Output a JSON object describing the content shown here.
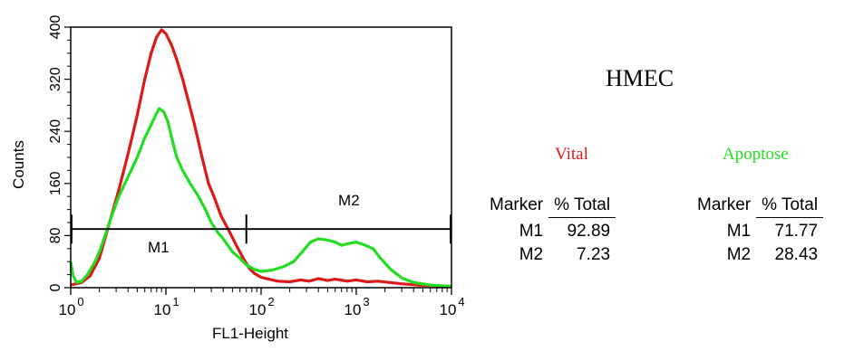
{
  "chart_data": {
    "type": "line",
    "xlabel": "FL1-Height",
    "ylabel": "Counts",
    "xscale": "log",
    "xlim": [
      1,
      10000
    ],
    "ylim": [
      0,
      400
    ],
    "yticks": [
      "0",
      "80",
      "160",
      "240",
      "320",
      "400"
    ],
    "xticks": [
      {
        "base": "10",
        "exp": "0"
      },
      {
        "base": "10",
        "exp": "1"
      },
      {
        "base": "10",
        "exp": "2"
      },
      {
        "base": "10",
        "exp": "3"
      },
      {
        "base": "10",
        "exp": "4"
      }
    ],
    "series": [
      {
        "color": "#dd1a1a",
        "points": [
          [
            1.0,
            4
          ],
          [
            1.3,
            8
          ],
          [
            1.6,
            18
          ],
          [
            2.0,
            45
          ],
          [
            2.5,
            95
          ],
          [
            3.2,
            150
          ],
          [
            4.0,
            205
          ],
          [
            5.0,
            265
          ],
          [
            6.0,
            320
          ],
          [
            7.0,
            360
          ],
          [
            8.0,
            385
          ],
          [
            9.0,
            396
          ],
          [
            10.0,
            390
          ],
          [
            11.5,
            372
          ],
          [
            13.0,
            350
          ],
          [
            15.0,
            320
          ],
          [
            17.0,
            290
          ],
          [
            20.0,
            250
          ],
          [
            24.0,
            200
          ],
          [
            28.0,
            160
          ],
          [
            32.0,
            140
          ],
          [
            38.0,
            110
          ],
          [
            45.0,
            90
          ],
          [
            55.0,
            65
          ],
          [
            65.0,
            45
          ],
          [
            75.0,
            30
          ],
          [
            85.0,
            22
          ],
          [
            100.0,
            16
          ],
          [
            120.0,
            13
          ],
          [
            150.0,
            10
          ],
          [
            200.0,
            9
          ],
          [
            260.0,
            12
          ],
          [
            320.0,
            10
          ],
          [
            400.0,
            14
          ],
          [
            500.0,
            11
          ],
          [
            600.0,
            13
          ],
          [
            800.0,
            10
          ],
          [
            1000.0,
            12
          ],
          [
            1300.0,
            9
          ],
          [
            1700.0,
            10
          ],
          [
            2200.0,
            8
          ],
          [
            3000.0,
            6
          ],
          [
            4500.0,
            4
          ],
          [
            7000.0,
            3
          ],
          [
            10000.0,
            2
          ]
        ]
      },
      {
        "color": "#22dd22",
        "points": [
          [
            1.0,
            40
          ],
          [
            1.05,
            20
          ],
          [
            1.15,
            8
          ],
          [
            1.3,
            10
          ],
          [
            1.5,
            20
          ],
          [
            1.8,
            40
          ],
          [
            2.0,
            55
          ],
          [
            2.3,
            80
          ],
          [
            2.7,
            110
          ],
          [
            3.2,
            140
          ],
          [
            4.0,
            170
          ],
          [
            5.0,
            200
          ],
          [
            6.0,
            230
          ],
          [
            7.0,
            250
          ],
          [
            7.8,
            265
          ],
          [
            8.5,
            275
          ],
          [
            9.5,
            270
          ],
          [
            10.5,
            255
          ],
          [
            11.5,
            230
          ],
          [
            13.0,
            200
          ],
          [
            15.0,
            180
          ],
          [
            18.0,
            160
          ],
          [
            22.0,
            140
          ],
          [
            26.0,
            120
          ],
          [
            30.0,
            100
          ],
          [
            35.0,
            85
          ],
          [
            40.0,
            75
          ],
          [
            50.0,
            55
          ],
          [
            60.0,
            45
          ],
          [
            70.0,
            35
          ],
          [
            85.0,
            28
          ],
          [
            100.0,
            25
          ],
          [
            130.0,
            27
          ],
          [
            170.0,
            32
          ],
          [
            220.0,
            40
          ],
          [
            270.0,
            55
          ],
          [
            330.0,
            70
          ],
          [
            400.0,
            75
          ],
          [
            500.0,
            73
          ],
          [
            600.0,
            70
          ],
          [
            700.0,
            65
          ],
          [
            850.0,
            68
          ],
          [
            1000.0,
            70
          ],
          [
            1200.0,
            66
          ],
          [
            1500.0,
            60
          ],
          [
            1800.0,
            45
          ],
          [
            2300.0,
            28
          ],
          [
            3000.0,
            15
          ],
          [
            4000.0,
            8
          ],
          [
            6000.0,
            4
          ],
          [
            10000.0,
            2
          ]
        ]
      }
    ],
    "markers": [
      {
        "label": "M1",
        "x_range": [
          1,
          70
        ],
        "y": 90
      },
      {
        "label": "M2",
        "x_range": [
          70,
          10000
        ],
        "y": 90
      }
    ]
  },
  "sample_title": "HMEC",
  "groups": [
    {
      "title": "Vital",
      "color": "#dd1a1a",
      "headers": [
        "Marker",
        "% Total"
      ],
      "rows": [
        [
          "M1",
          "92.89"
        ],
        [
          "M2",
          "7.23"
        ]
      ]
    },
    {
      "title": "Apoptose",
      "color": "#22dd22",
      "headers": [
        "Marker",
        "% Total"
      ],
      "rows": [
        [
          "M1",
          "71.77"
        ],
        [
          "M2",
          "28.43"
        ]
      ]
    }
  ]
}
